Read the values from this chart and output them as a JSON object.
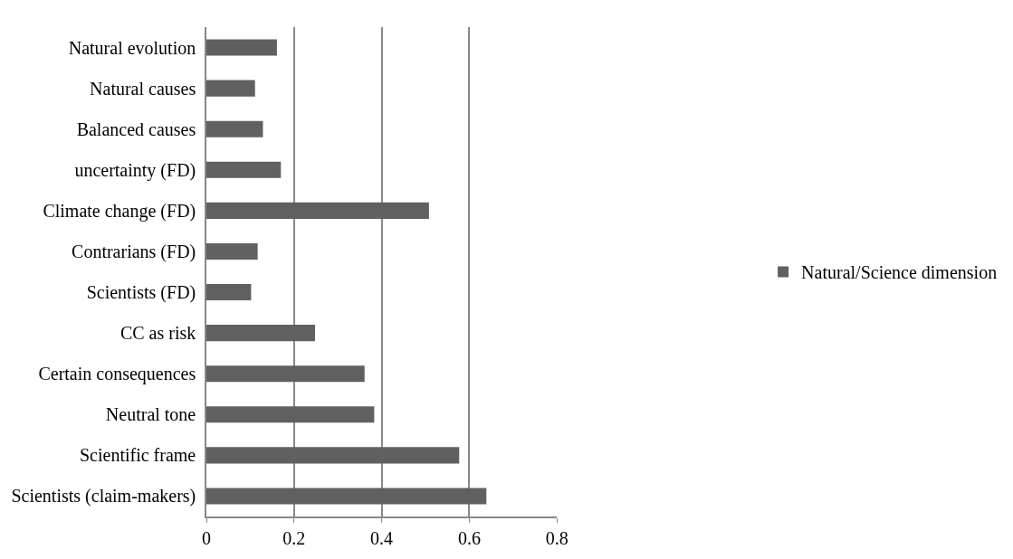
{
  "chart_data": {
    "type": "bar",
    "orientation": "horizontal",
    "categories": [
      "Natural evolution",
      "Natural causes",
      "Balanced causes",
      "uncertainty (FD)",
      "Climate change (FD)",
      "Contrarians (FD)",
      "Scientists (FD)",
      "CC as risk",
      "Certain consequences",
      "Neutral tone",
      "Scientific frame",
      "Scientists (claim-makers)"
    ],
    "series": [
      {
        "name": "Natural/Science dimension",
        "color": "#606060",
        "values": [
          0.161,
          0.111,
          0.129,
          0.17,
          0.508,
          0.117,
          0.102,
          0.248,
          0.361,
          0.383,
          0.577,
          0.639
        ]
      }
    ],
    "xlim": [
      0,
      0.8
    ],
    "xticks": [
      0,
      {
        "value": 0.2,
        "label": "0.2"
      },
      {
        "value": 0.4,
        "label": "0.4"
      },
      {
        "value": 0.6,
        "label": "0.6"
      },
      {
        "value": 0.8,
        "label": "0.8"
      }
    ],
    "grid": "x",
    "legend": "right"
  }
}
